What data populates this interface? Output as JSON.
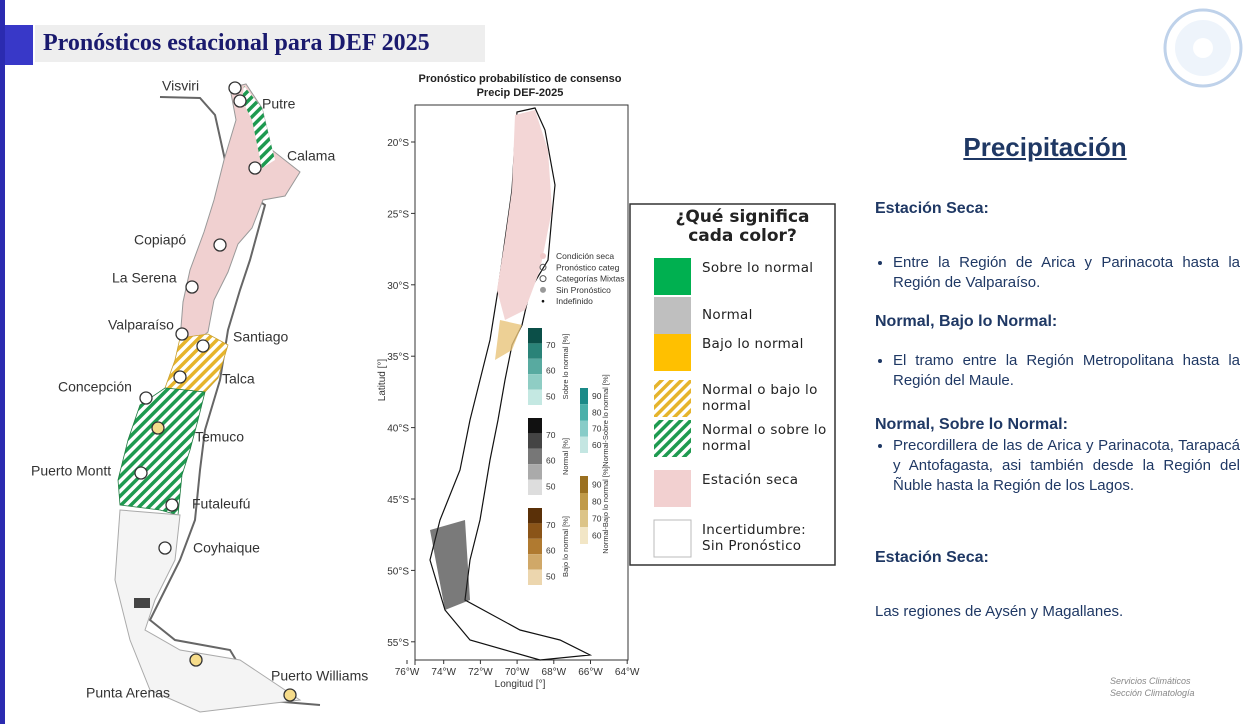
{
  "header": {
    "title": "Pronósticos estacional para DEF 2025"
  },
  "left_map": {
    "cities": [
      "Visviri",
      "Putre",
      "Calama",
      "Copiapó",
      "La Serena",
      "Valparaíso",
      "Santiago",
      "Talca",
      "Concepción",
      "Temuco",
      "Puerto Montt",
      "Futaleufú",
      "Coyhaique",
      "Punta Arenas",
      "Puerto Williams"
    ]
  },
  "center_map": {
    "title": "Pronóstico probabilístico de consenso",
    "subtitle": "Precip DEF-2025",
    "yticks": [
      "20°S",
      "25°S",
      "30°S",
      "35°S",
      "40°S",
      "45°S",
      "50°S",
      "55°S"
    ],
    "xticks": [
      "76°W",
      "74°W",
      "72°W",
      "70°W",
      "68°W",
      "66°W",
      "64°W"
    ],
    "xlabel": "Longitud [°]",
    "ylabel": "Latitud [°]",
    "legend": [
      "Condición seca",
      "Pronóstico categ",
      "Categorías Mixtas",
      "Sin Pronóstico",
      "Indefinido"
    ],
    "colorbars": [
      {
        "label": "Sobre lo normal [%]",
        "ticks": [
          "70",
          "60",
          "50"
        ]
      },
      {
        "label": "Normal [%]",
        "ticks": [
          "70",
          "60",
          "50"
        ]
      },
      {
        "label": "Bajo lo normal [%]",
        "ticks": [
          "70",
          "60",
          "50"
        ]
      },
      {
        "label": "Normal-Sobre lo normal [%]",
        "ticks": [
          "90",
          "80",
          "70",
          "60"
        ]
      },
      {
        "label": "Normal-Bajo lo normal [%]",
        "ticks": [
          "90",
          "80",
          "70",
          "60"
        ]
      }
    ]
  },
  "color_key": {
    "title": "¿Qué significa cada color?",
    "items": [
      "Sobre lo normal",
      "Normal",
      "Bajo lo normal",
      "Normal o bajo lo normal",
      "Normal o sobre lo normal",
      "Estación seca",
      "Incertidumbre: Sin Pronóstico"
    ]
  },
  "text_panel": {
    "heading": "Precipitación",
    "sections": [
      {
        "title": "Estación Seca:",
        "items": [
          "Entre la Región de Arica y Parinacota hasta la Región de Valparaíso."
        ]
      },
      {
        "title": "Normal, Bajo lo Normal:",
        "items": [
          "El tramo entre la Región Metropolitana hasta la Región del Maule."
        ]
      },
      {
        "title": "Normal, Sobre lo Normal:",
        "items": [
          "Precordillera de las de Arica y Parinacota, Tarapacá y Antofagasta, asi también desde la Región del Ñuble hasta la Región de los Lagos."
        ]
      },
      {
        "title": "Estación Seca:",
        "text": "Las regiones de Aysén y Magallanes."
      }
    ]
  },
  "footer": [
    "Servicios Climáticos",
    "Sección Climatología"
  ]
}
